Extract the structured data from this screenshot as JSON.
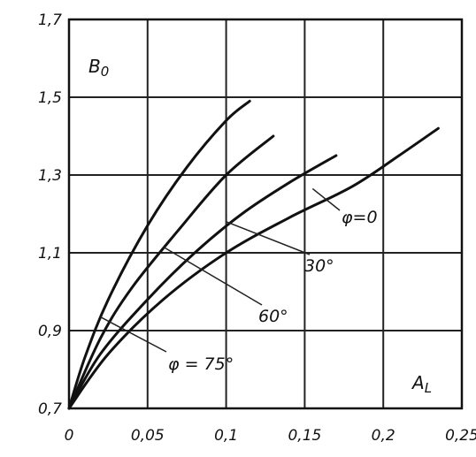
{
  "chart_data": {
    "type": "line",
    "title": "",
    "xlabel": "A_L",
    "ylabel": "B_0",
    "xlabel_main": "A",
    "xlabel_sub": "L",
    "ylabel_main": "B",
    "ylabel_sub": "0",
    "xlim": [
      0,
      0.25
    ],
    "ylim": [
      0.7,
      1.7
    ],
    "x_ticks": [
      0,
      0.05,
      0.1,
      0.15,
      0.2,
      0.25
    ],
    "x_tick_labels": [
      "0",
      "0,05",
      "0,1",
      "0,15",
      "0,2",
      "0,25"
    ],
    "y_ticks": [
      0.7,
      0.9,
      1.1,
      1.3,
      1.5,
      1.7
    ],
    "y_tick_labels": [
      "0,7",
      "0,9",
      "1,1",
      "1,3",
      "1,5",
      "1,7"
    ],
    "grid": true,
    "series": [
      {
        "name": "φ = 75°",
        "values_x": [
          0,
          0.01,
          0.025,
          0.05,
          0.075,
          0.1,
          0.115
        ],
        "values_y": [
          0.7,
          0.83,
          0.98,
          1.17,
          1.32,
          1.44,
          1.49
        ]
      },
      {
        "name": "60°",
        "values_x": [
          0,
          0.02,
          0.04,
          0.07,
          0.1,
          0.13
        ],
        "values_y": [
          0.7,
          0.88,
          1.01,
          1.16,
          1.3,
          1.4
        ]
      },
      {
        "name": "30°",
        "values_x": [
          0,
          0.02,
          0.05,
          0.08,
          0.11,
          0.14,
          0.17
        ],
        "values_y": [
          0.7,
          0.84,
          0.98,
          1.1,
          1.2,
          1.28,
          1.35
        ]
      },
      {
        "name": "φ=0",
        "values_x": [
          0,
          0.025,
          0.06,
          0.1,
          0.14,
          0.18,
          0.21,
          0.235
        ],
        "values_y": [
          0.7,
          0.84,
          0.98,
          1.1,
          1.19,
          1.27,
          1.35,
          1.42
        ]
      }
    ],
    "annotations": [
      {
        "text": "φ = 75°",
        "series": 0
      },
      {
        "text": "60°",
        "series": 1
      },
      {
        "text": "30°",
        "series": 2
      },
      {
        "text": "φ=0",
        "series": 3
      }
    ]
  }
}
